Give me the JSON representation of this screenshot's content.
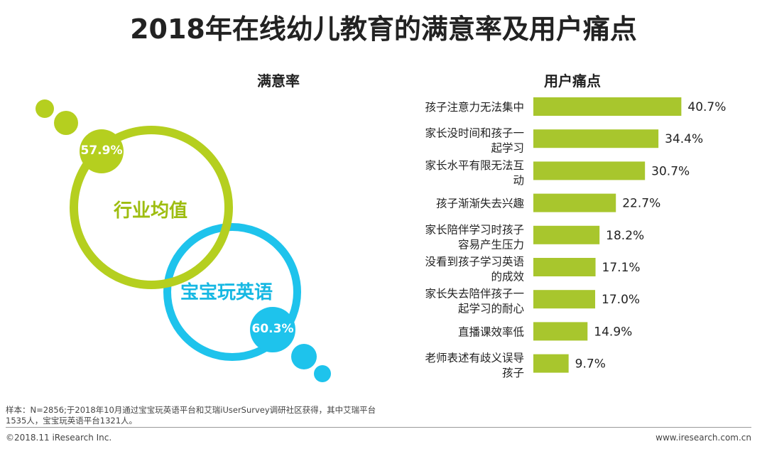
{
  "title": "2018年在线幼儿教育的满意率及用户痛点",
  "left_title": "满意率",
  "right_title": "用户痛点",
  "satisfaction": [
    {
      "label": "行业均值",
      "value_label": "57.9%",
      "value": 57.9,
      "color": "#b5cf1f"
    },
    {
      "label": "宝宝玩英语",
      "value_label": "60.3%",
      "value": 60.3,
      "color": "#1ec3ec"
    }
  ],
  "chart_data": {
    "type": "bar",
    "orientation": "horizontal",
    "title": "用户痛点",
    "categories": [
      [
        "孩子注意力无法集中"
      ],
      [
        "家长没时间和孩子一",
        "起学习"
      ],
      [
        "家长水平有限无法互",
        "动"
      ],
      [
        "孩子渐渐失去兴趣"
      ],
      [
        "家长陪伴学习时孩子",
        "容易产生压力"
      ],
      [
        "没看到孩子学习英语",
        "的成效"
      ],
      [
        "家长失去陪伴孩子一",
        "起学习的耐心"
      ],
      [
        "直播课效率低"
      ],
      [
        "老师表述有歧义误导",
        "孩子"
      ]
    ],
    "values": [
      40.7,
      34.4,
      30.7,
      22.7,
      18.2,
      17.1,
      17.0,
      14.9,
      9.7
    ],
    "value_labels": [
      "40.7%",
      "34.4%",
      "30.7%",
      "22.7%",
      "18.2%",
      "17.1%",
      "17.0%",
      "14.9%",
      "9.7%"
    ],
    "bar_color": "#a8c62d"
  },
  "footer": {
    "note": "样本：N=2856;于2018年10月通过宝宝玩英语平台和艾瑞iUserSurvey调研社区获得，其中艾瑞平台1535人，宝宝玩英语平台1321人。",
    "copyright": "©2018.11 iResearch Inc.",
    "website": "www.iresearch.com.cn"
  }
}
